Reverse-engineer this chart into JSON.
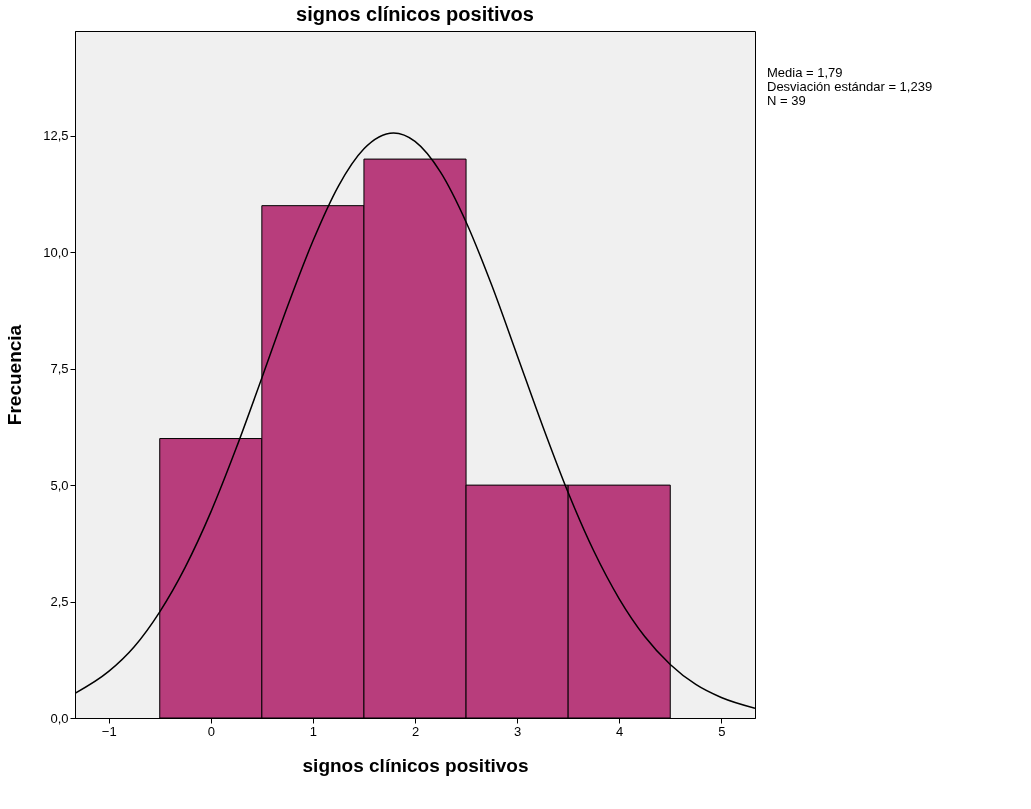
{
  "chart_data": {
    "type": "histogram",
    "title": "signos clínicos positivos",
    "xlabel": "signos clínicos positivos",
    "ylabel": "Frecuencia",
    "bins": [
      -0.5,
      0.5,
      1.5,
      2.5,
      3.5,
      4.5
    ],
    "values": [
      6,
      11,
      12,
      5,
      5
    ],
    "color": "#b83d7c",
    "series": [
      {
        "type": "line",
        "color": "#000000",
        "x": [
          -1.33,
          -1,
          -0.75,
          -0.5,
          -0.25,
          0,
          0.25,
          0.5,
          0.75,
          1,
          1.25,
          1.5,
          1.79,
          2,
          2.25,
          2.5,
          2.75,
          3,
          3.25,
          3.5,
          3.75,
          4,
          4.25,
          4.5,
          4.75,
          5,
          5.33
        ],
        "values": [
          0.53,
          1.0,
          1.53,
          2.28,
          3.24,
          4.42,
          5.8,
          7.3,
          8.83,
          10.24,
          11.42,
          12.22,
          12.56,
          12.38,
          11.72,
          10.65,
          9.3,
          7.79,
          6.27,
          4.84,
          3.59,
          2.56,
          1.75,
          1.15,
          0.72,
          0.44,
          0.21
        ]
      }
    ],
    "xlim": [
      -1.33,
      5.33
    ],
    "xticks": [
      -1,
      0,
      1,
      2,
      3,
      4,
      5
    ],
    "ylim": [
      0,
      14.75
    ],
    "yticks": [
      {
        "value": 0,
        "label": "0,0"
      },
      {
        "value": 2.5,
        "label": "2,5"
      },
      {
        "value": 5,
        "label": "5,0"
      },
      {
        "value": 7.5,
        "label": "7,5"
      },
      {
        "value": 10,
        "label": "10,0"
      },
      {
        "value": 12.5,
        "label": "12,5"
      }
    ],
    "annotations": [
      "Media = 1,79",
      "Desviación estándar = 1,239",
      "N = 39"
    ],
    "grid": false
  }
}
